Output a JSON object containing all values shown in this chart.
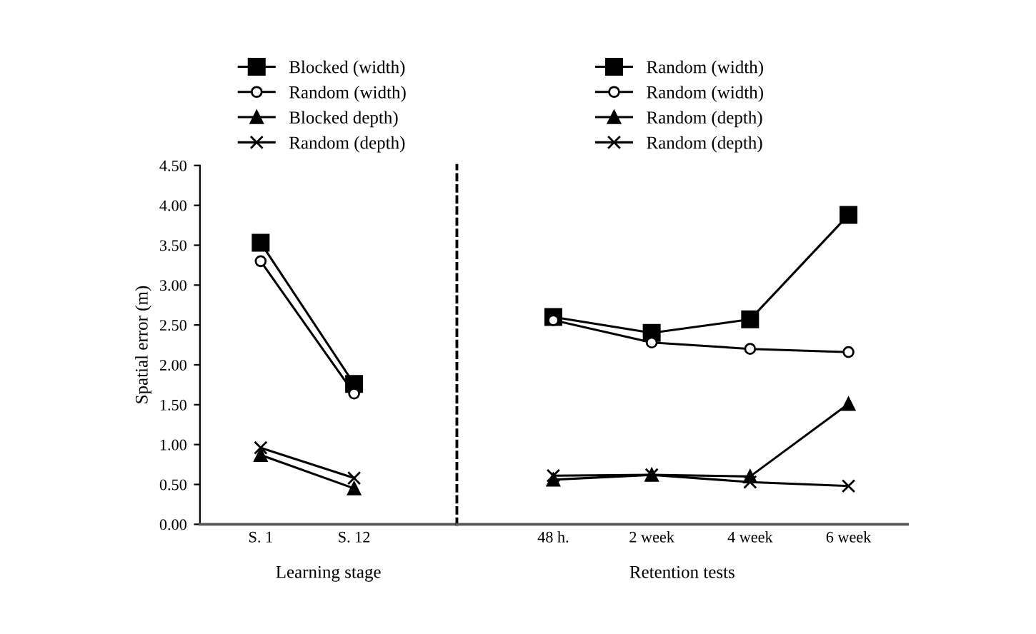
{
  "chart_data": [
    {
      "type": "line",
      "xlabel": "Learning stage",
      "ylabel": "Spatial error (m)",
      "categories": [
        "S. 1",
        "S. 12"
      ],
      "ylim": [
        0,
        4.5
      ],
      "yticks": [
        {
          "value": 0,
          "label": "0.00"
        },
        {
          "value": 0.5,
          "label": "0.50"
        },
        {
          "value": 1,
          "label": "1.00"
        },
        {
          "value": 1.5,
          "label": "1.50"
        },
        {
          "value": 2,
          "label": "2.00"
        },
        {
          "value": 2.5,
          "label": "2.50"
        },
        {
          "value": 3,
          "label": "3.00"
        },
        {
          "value": 3.5,
          "label": "3.50"
        },
        {
          "value": 4,
          "label": "4.00"
        },
        {
          "value": 4.5,
          "label": "4.50"
        }
      ],
      "legend": "top",
      "grid": false,
      "series": [
        {
          "name": "Blocked (width)",
          "color": "#000000",
          "marker": "square",
          "values": [
            3.53,
            1.76
          ]
        },
        {
          "name": "Random (width)",
          "color": "#000000",
          "marker": "circle",
          "values": [
            3.3,
            1.64
          ]
        },
        {
          "name": "Blocked depth)",
          "color": "#000000",
          "marker": "triangle",
          "values": [
            0.87,
            0.45
          ]
        },
        {
          "name": "Random (depth)",
          "color": "#000000",
          "marker": "cross",
          "values": [
            0.96,
            0.58
          ]
        }
      ]
    },
    {
      "type": "line",
      "xlabel": "Retention tests",
      "categories": [
        "48 h.",
        "2 week",
        "4 week",
        "6 week"
      ],
      "ylim": [
        0,
        4.5
      ],
      "tick_labels": "x",
      "legend": "top",
      "grid": false,
      "series": [
        {
          "name": "Random (width)",
          "color": "#000000",
          "marker": "square",
          "values": [
            2.6,
            2.4,
            2.57,
            3.88
          ]
        },
        {
          "name": "Random (width)",
          "color": "#000000",
          "marker": "circle",
          "values": [
            2.56,
            2.28,
            2.2,
            2.16
          ]
        },
        {
          "name": "Random (depth)",
          "color": "#000000",
          "marker": "triangle",
          "values": [
            0.56,
            0.62,
            0.6,
            1.51
          ]
        },
        {
          "name": "Random (depth)",
          "color": "#000000",
          "marker": "cross",
          "values": [
            0.61,
            0.62,
            0.53,
            0.48
          ]
        }
      ]
    }
  ]
}
